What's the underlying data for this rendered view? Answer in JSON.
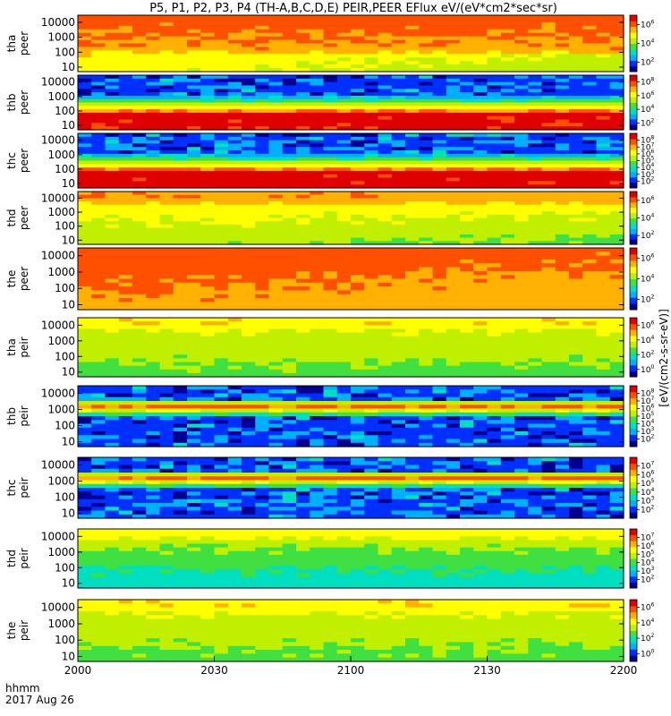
{
  "chart_data": {
    "type": "heatmap",
    "title": "P5, P1, P2, P3, P4 (TH-A,B,C,D,E) PEIR,PEER EFlux eV/(eV*cm2*sec*sr)",
    "x_tick_labels": [
      "2000",
      "2030",
      "2100",
      "2130",
      "2200"
    ],
    "x_ticks_minutes": [
      0,
      30,
      60,
      90,
      120
    ],
    "xlim_minutes": [
      0,
      120
    ],
    "x_corner_label_line1": "hhmm",
    "x_corner_label_line2": "2017 Aug 26",
    "y_scale": "log",
    "ylim": [
      5,
      30000
    ],
    "y_tick_labels": [
      "10",
      "100",
      "1000",
      "10000"
    ],
    "y_tick_values": [
      10,
      100,
      1000,
      10000
    ],
    "colorbar_units": "[eV/(cm2-s-sr-eV)]",
    "colorbar_scale": "log",
    "colorscale": [
      "#000090",
      "#0030ff",
      "#00b0ff",
      "#00e0c0",
      "#40e040",
      "#c0f000",
      "#ffff00",
      "#ffb000",
      "#ff5000",
      "#e00000"
    ],
    "panels": [
      {
        "label_line1": "tha",
        "label_line2": "peer",
        "colorbar_ticks": [
          "10^6",
          "10^4",
          "10^2"
        ],
        "colorbar_range_exp": [
          1,
          7
        ],
        "pattern": "hot_upper"
      },
      {
        "label_line1": "thb",
        "label_line2": "peer",
        "colorbar_ticks": [
          "10^8",
          "10^6",
          "10^4",
          "10^2"
        ],
        "colorbar_range_exp": [
          1,
          9
        ],
        "pattern": "noise_top_hot_bottom"
      },
      {
        "label_line1": "thc",
        "label_line2": "peer",
        "colorbar_ticks": [
          "10^8",
          "10^7",
          "10^6",
          "10^5",
          "10^4",
          "10^3",
          "10^2"
        ],
        "colorbar_range_exp": [
          1,
          9
        ],
        "pattern": "noise_top_hot_bottom"
      },
      {
        "label_line1": "thd",
        "label_line2": "peer",
        "colorbar_ticks": [
          "10^6",
          "10^4",
          "10^2"
        ],
        "colorbar_range_exp": [
          1,
          7
        ],
        "pattern": "warm"
      },
      {
        "label_line1": "the",
        "label_line2": "peer",
        "colorbar_ticks": [
          "10^6",
          "10^4",
          "10^2"
        ],
        "colorbar_range_exp": [
          1,
          7
        ],
        "pattern": "hot"
      },
      {
        "label_line1": "tha",
        "label_line2": "peir",
        "colorbar_ticks": [
          "10^6",
          "10^4",
          "10^2",
          "10^0"
        ],
        "colorbar_range_exp": [
          -1,
          7
        ],
        "pattern": "yellow"
      },
      {
        "label_line1": "thb",
        "label_line2": "peir",
        "colorbar_ticks": [
          "10^8",
          "10^7",
          "10^6",
          "10^5",
          "10^4",
          "10^3",
          "10^2"
        ],
        "colorbar_range_exp": [
          1,
          9
        ],
        "pattern": "noise_band"
      },
      {
        "label_line1": "thc",
        "label_line2": "peir",
        "colorbar_ticks": [
          "10^7",
          "10^6",
          "10^5",
          "10^4",
          "10^3",
          "10^2"
        ],
        "colorbar_range_exp": [
          1,
          8
        ],
        "pattern": "noise_band"
      },
      {
        "label_line1": "thd",
        "label_line2": "peir",
        "colorbar_ticks": [
          "10^7",
          "10^6",
          "10^5",
          "10^4",
          "10^3",
          "10^2"
        ],
        "colorbar_range_exp": [
          1,
          8
        ],
        "pattern": "yellow_green"
      },
      {
        "label_line1": "the",
        "label_line2": "peir",
        "colorbar_ticks": [
          "10^6",
          "10^4",
          "10^2",
          "10^0"
        ],
        "colorbar_range_exp": [
          -1,
          7
        ],
        "pattern": "yellow"
      }
    ]
  }
}
